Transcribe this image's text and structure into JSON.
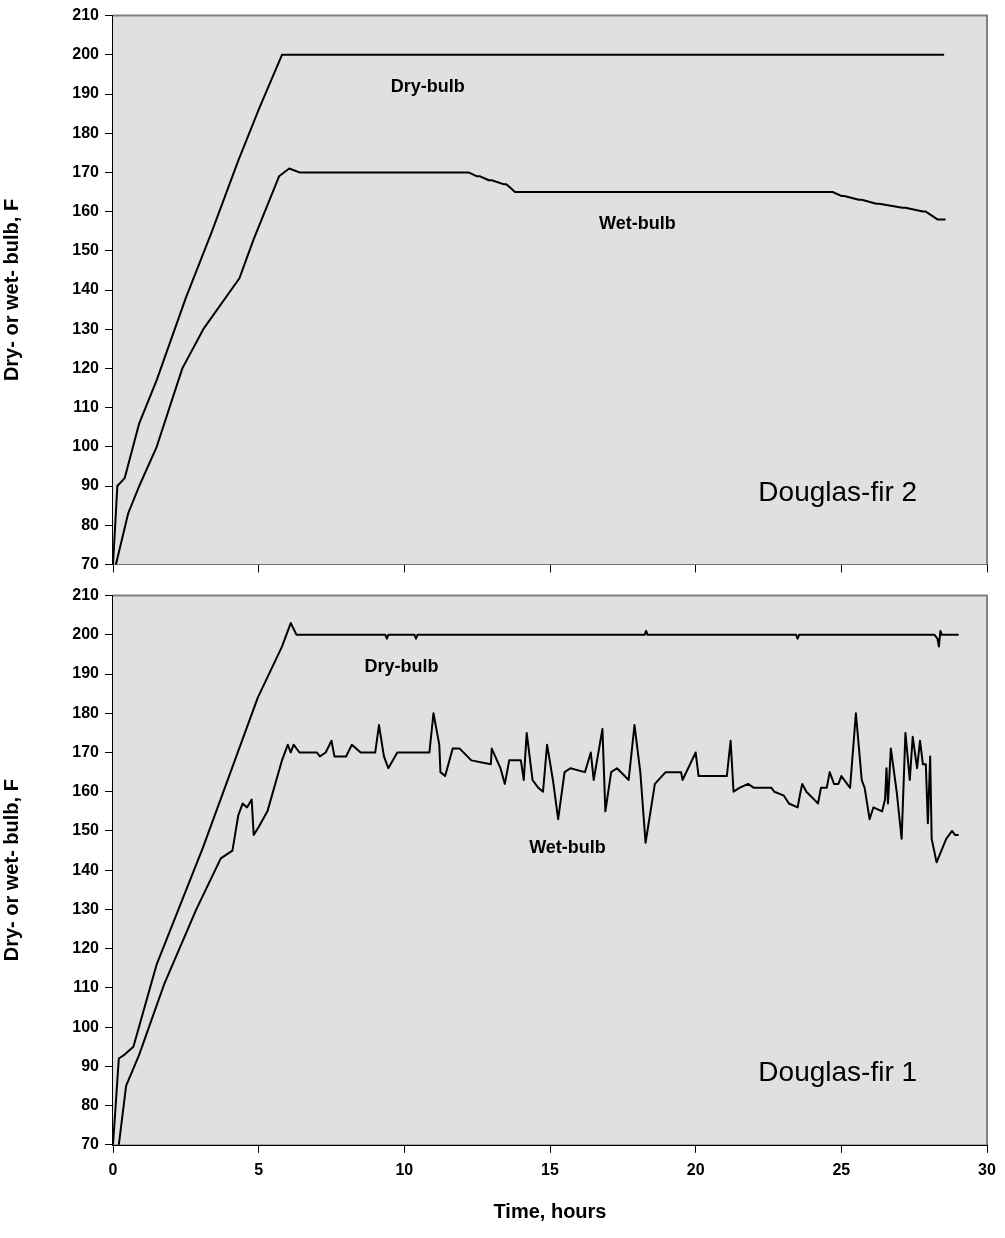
{
  "chart_data": [
    {
      "type": "line",
      "ylabel": "Dry- or wet- bulb, F",
      "xlim": [
        0,
        30
      ],
      "xticks": [
        0,
        5,
        10,
        15,
        20,
        25,
        30
      ],
      "ylim": [
        70,
        210
      ],
      "yticks": [
        70,
        80,
        90,
        100,
        110,
        120,
        130,
        140,
        150,
        160,
        170,
        180,
        190,
        200,
        210
      ],
      "tick_labels": "y",
      "series": [
        {
          "color": "#000000",
          "x": [
            0,
            0.15,
            0.4,
            0.9,
            1.5,
            2.5,
            3.4,
            4.3,
            5,
            5.8,
            28.5
          ],
          "values": [
            70,
            90,
            92,
            106,
            117,
            138,
            155,
            173,
            186,
            200,
            200
          ]
        },
        {
          "color": "#000000",
          "x": [
            0.1,
            0.52,
            0.9,
            1.5,
            2.38,
            3.1,
            4.34,
            4.83,
            5.7,
            6.05,
            6.4,
            12.2,
            12.5,
            12.6,
            12.9,
            13.0,
            13.4,
            13.5,
            13.8,
            24.7,
            25.0,
            25.1,
            25.6,
            25.7,
            26.2,
            26.3,
            27.1,
            27.2,
            27.8,
            27.9,
            28.3,
            28.55
          ],
          "values": [
            70,
            83,
            90,
            100,
            120,
            130,
            143,
            153,
            169,
            171,
            170,
            170,
            169,
            169,
            168,
            168,
            167,
            167,
            165,
            165,
            164,
            164,
            163,
            163,
            162,
            162,
            161,
            161,
            160,
            160,
            158,
            158
          ]
        }
      ],
      "annotations": [
        "Dry-bulb",
        "Wet-bulb",
        "Douglas-fir 2"
      ]
    },
    {
      "type": "line",
      "xlabel": "Time, hours",
      "ylabel": "Dry- or wet- bulb, F",
      "xlim": [
        0,
        30
      ],
      "xticks": [
        0,
        5,
        10,
        15,
        20,
        25,
        30
      ],
      "ylim": [
        70,
        210
      ],
      "yticks": [
        70,
        80,
        90,
        100,
        110,
        120,
        130,
        140,
        150,
        160,
        170,
        180,
        190,
        200,
        210
      ],
      "series": [
        {
          "color": "#000000",
          "x": [
            0,
            0.2,
            0.4,
            0.7,
            1.5,
            3.1,
            4.97,
            5.8,
            6.1,
            6.3,
            9.35,
            9.4,
            9.45,
            10.35,
            10.4,
            10.45,
            18.25,
            18.3,
            18.35,
            23.45,
            23.5,
            23.55,
            28.2,
            28.3,
            28.35,
            28.4,
            28.45,
            29.0
          ],
          "values": [
            70,
            92,
            93,
            95,
            116,
            146,
            184,
            197,
            203,
            200,
            200,
            199,
            200,
            200,
            199,
            200,
            200,
            201,
            200,
            200,
            199,
            200,
            200,
            199,
            197,
            201,
            200,
            200
          ]
        },
        {
          "color": "#000000",
          "x": [
            0.2,
            0.45,
            0.9,
            1.76,
            2.86,
            3.7,
            4.1,
            4.3,
            4.45,
            4.6,
            4.76,
            4.83,
            5.0,
            5.3,
            5.8,
            6.0,
            6.1,
            6.2,
            6.4,
            7.0,
            7.1,
            7.3,
            7.5,
            7.6,
            8.0,
            8.2,
            8.5,
            9.0,
            9.13,
            9.3,
            9.45,
            9.76,
            10.86,
            11.0,
            11.2,
            11.24,
            11.4,
            11.66,
            11.9,
            12.3,
            12.97,
            13.0,
            13.3,
            13.45,
            13.6,
            14.0,
            14.1,
            14.2,
            14.4,
            14.6,
            14.76,
            14.9,
            15.1,
            15.28,
            15.5,
            15.7,
            16.2,
            16.4,
            16.5,
            16.8,
            16.9,
            17.1,
            17.3,
            17.7,
            17.9,
            18.1,
            18.28,
            18.6,
            18.97,
            19.5,
            19.55,
            20.0,
            20.1,
            21.07,
            21.2,
            21.3,
            21.5,
            21.8,
            22.0,
            22.6,
            22.7,
            23.03,
            23.2,
            23.5,
            23.6,
            23.66,
            23.8,
            24.07,
            24.2,
            24.3,
            24.5,
            24.6,
            24.75,
            24.9,
            25.0,
            25.3,
            25.5,
            25.7,
            25.8,
            25.97,
            26.1,
            26.4,
            26.5,
            26.55,
            26.6,
            26.7,
            26.9,
            27.07,
            27.2,
            27.35,
            27.45,
            27.6,
            27.7,
            27.8,
            27.9,
            27.97,
            28.05,
            28.1,
            28.27,
            28.6,
            28.8,
            28.9,
            29.0
          ],
          "values": [
            70,
            85,
            93,
            111,
            130,
            143,
            145,
            154,
            157,
            156,
            158,
            149,
            151,
            155,
            168,
            172,
            170,
            172,
            170,
            170,
            169,
            170,
            173,
            169,
            169,
            172,
            170,
            170,
            177,
            169,
            166,
            170,
            170,
            180,
            172,
            165,
            164,
            171,
            171,
            168,
            167,
            171,
            166,
            162,
            168,
            168,
            163,
            175,
            163,
            161,
            160,
            172,
            163,
            153,
            165,
            166,
            165,
            170,
            163,
            176,
            155,
            165,
            166,
            163,
            177,
            165,
            147,
            162,
            165,
            165,
            163,
            170,
            164,
            164,
            173,
            160,
            161,
            162,
            161,
            161,
            160,
            159,
            157,
            156,
            160,
            162,
            160,
            158,
            157,
            161,
            161,
            165,
            162,
            162,
            164,
            161,
            180,
            163,
            161,
            153,
            156,
            155,
            158,
            166,
            157,
            171,
            160,
            148,
            175,
            163,
            174,
            166,
            173,
            167,
            167,
            152,
            169,
            148,
            142,
            148,
            150,
            149,
            149
          ]
        }
      ],
      "annotations": [
        "Dry-bulb",
        "Wet-bulb",
        "Douglas-fir 1"
      ]
    }
  ]
}
